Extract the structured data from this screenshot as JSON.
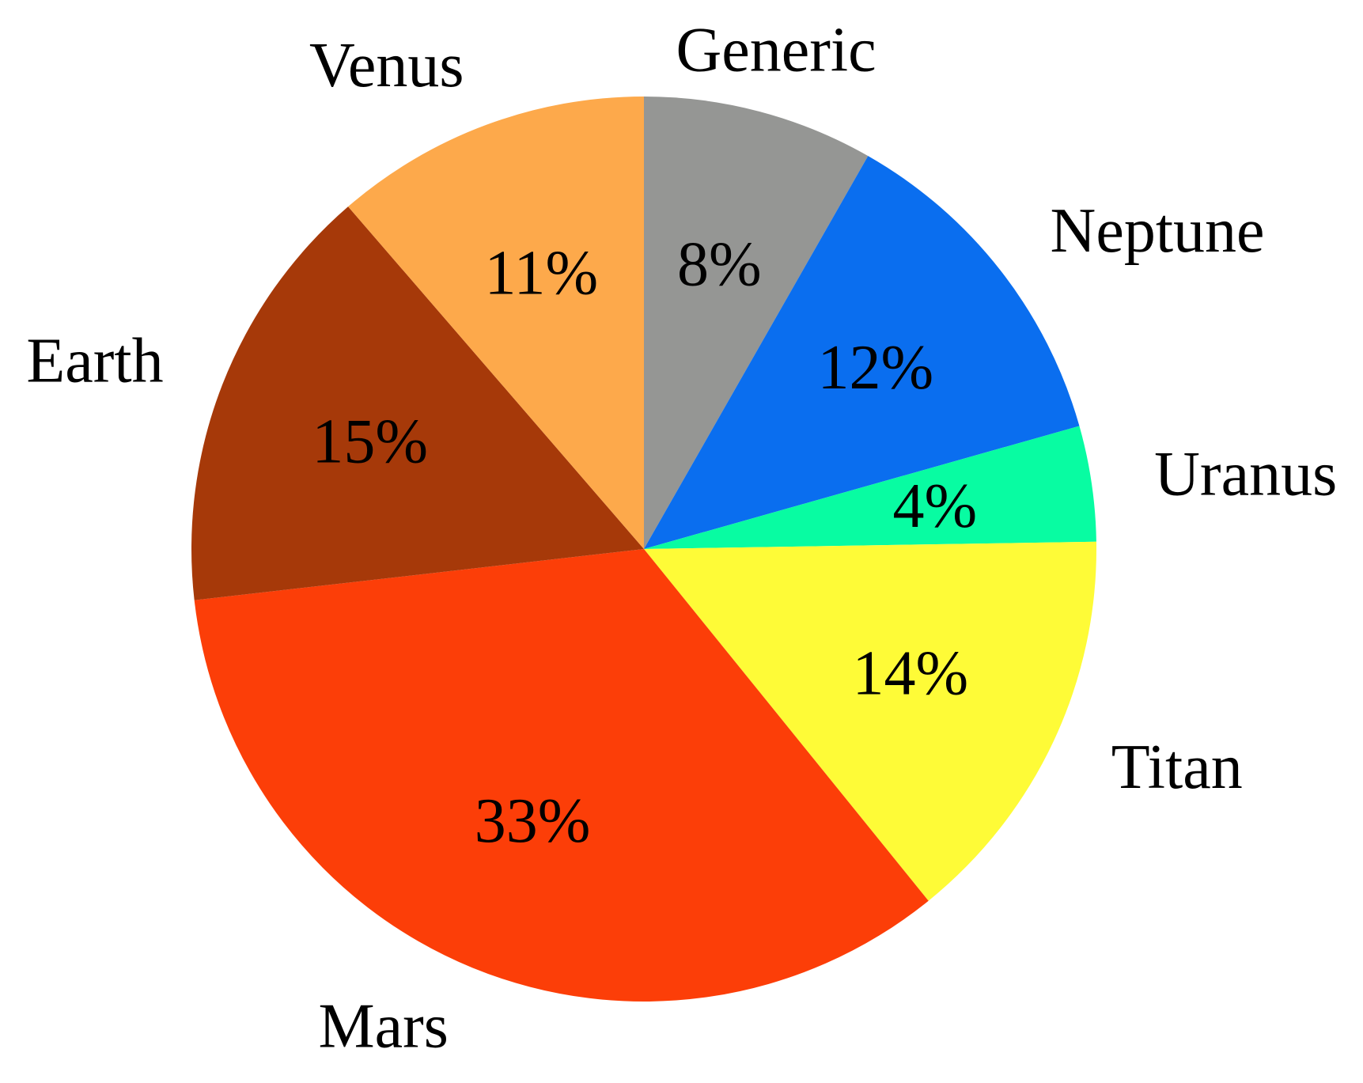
{
  "chart_data": {
    "type": "pie",
    "start_angle": "12 o'clock",
    "direction": "clockwise",
    "legend": "none",
    "slices": [
      {
        "label": "Generic",
        "value": 8,
        "value_label": "8%",
        "color": "#959694"
      },
      {
        "label": "Neptune",
        "value": 12,
        "value_label": "12%",
        "color": "#0A6EEF"
      },
      {
        "label": "Uranus",
        "value": 4,
        "value_label": "4%",
        "color": "#08FCA2"
      },
      {
        "label": "Titan",
        "value": 14,
        "value_label": "14%",
        "color": "#FEFB37"
      },
      {
        "label": "Mars",
        "value": 33,
        "value_label": "33%",
        "color": "#FC3E08"
      },
      {
        "label": "Earth",
        "value": 15,
        "value_label": "15%",
        "color": "#A63909"
      },
      {
        "label": "Venus",
        "value": 11,
        "value_label": "11%",
        "color": "#FDA94B"
      }
    ]
  }
}
